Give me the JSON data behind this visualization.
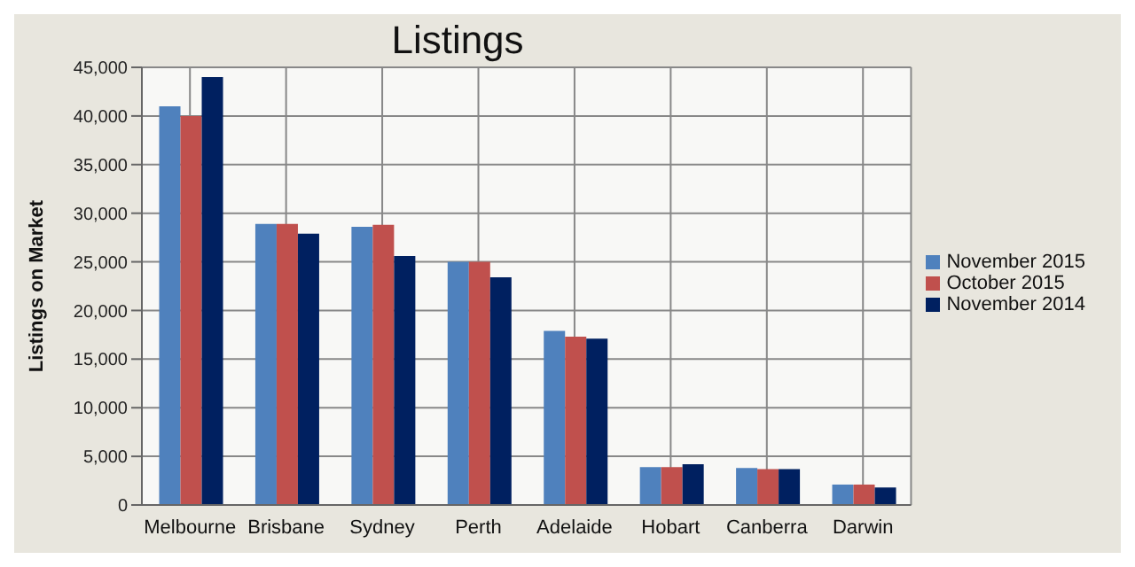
{
  "chart_data": {
    "type": "bar",
    "title": "Listings",
    "ylabel": "Listings on Market",
    "categories": [
      "Melbourne",
      "Brisbane",
      "Sydney",
      "Perth",
      "Adelaide",
      "Hobart",
      "Canberra",
      "Darwin"
    ],
    "series": [
      {
        "name": "November 2015",
        "color": "#4f81bd",
        "values": [
          41000,
          28900,
          28600,
          25000,
          17900,
          3900,
          3800,
          2100
        ]
      },
      {
        "name": "October 2015",
        "color": "#c0504d",
        "values": [
          40000,
          28900,
          28800,
          25000,
          17300,
          3900,
          3700,
          2100
        ]
      },
      {
        "name": "November 2014",
        "color": "#002060",
        "values": [
          44000,
          27900,
          25600,
          23400,
          17100,
          4200,
          3700,
          1800
        ]
      }
    ],
    "ylim": [
      0,
      45000
    ],
    "yticks": [
      0,
      {
        "value": 5000,
        "label": "5,000"
      },
      {
        "value": 10000,
        "label": "10,000"
      },
      {
        "value": 15000,
        "label": "15,000"
      },
      {
        "value": 20000,
        "label": "20,000"
      },
      {
        "value": 25000,
        "label": "25,000"
      },
      {
        "value": 30000,
        "label": "30,000"
      },
      {
        "value": 35000,
        "label": "35,000"
      },
      {
        "value": 40000,
        "label": "40,000"
      },
      {
        "value": 45000,
        "label": "45,000"
      }
    ],
    "grid": true,
    "legend": "right"
  }
}
